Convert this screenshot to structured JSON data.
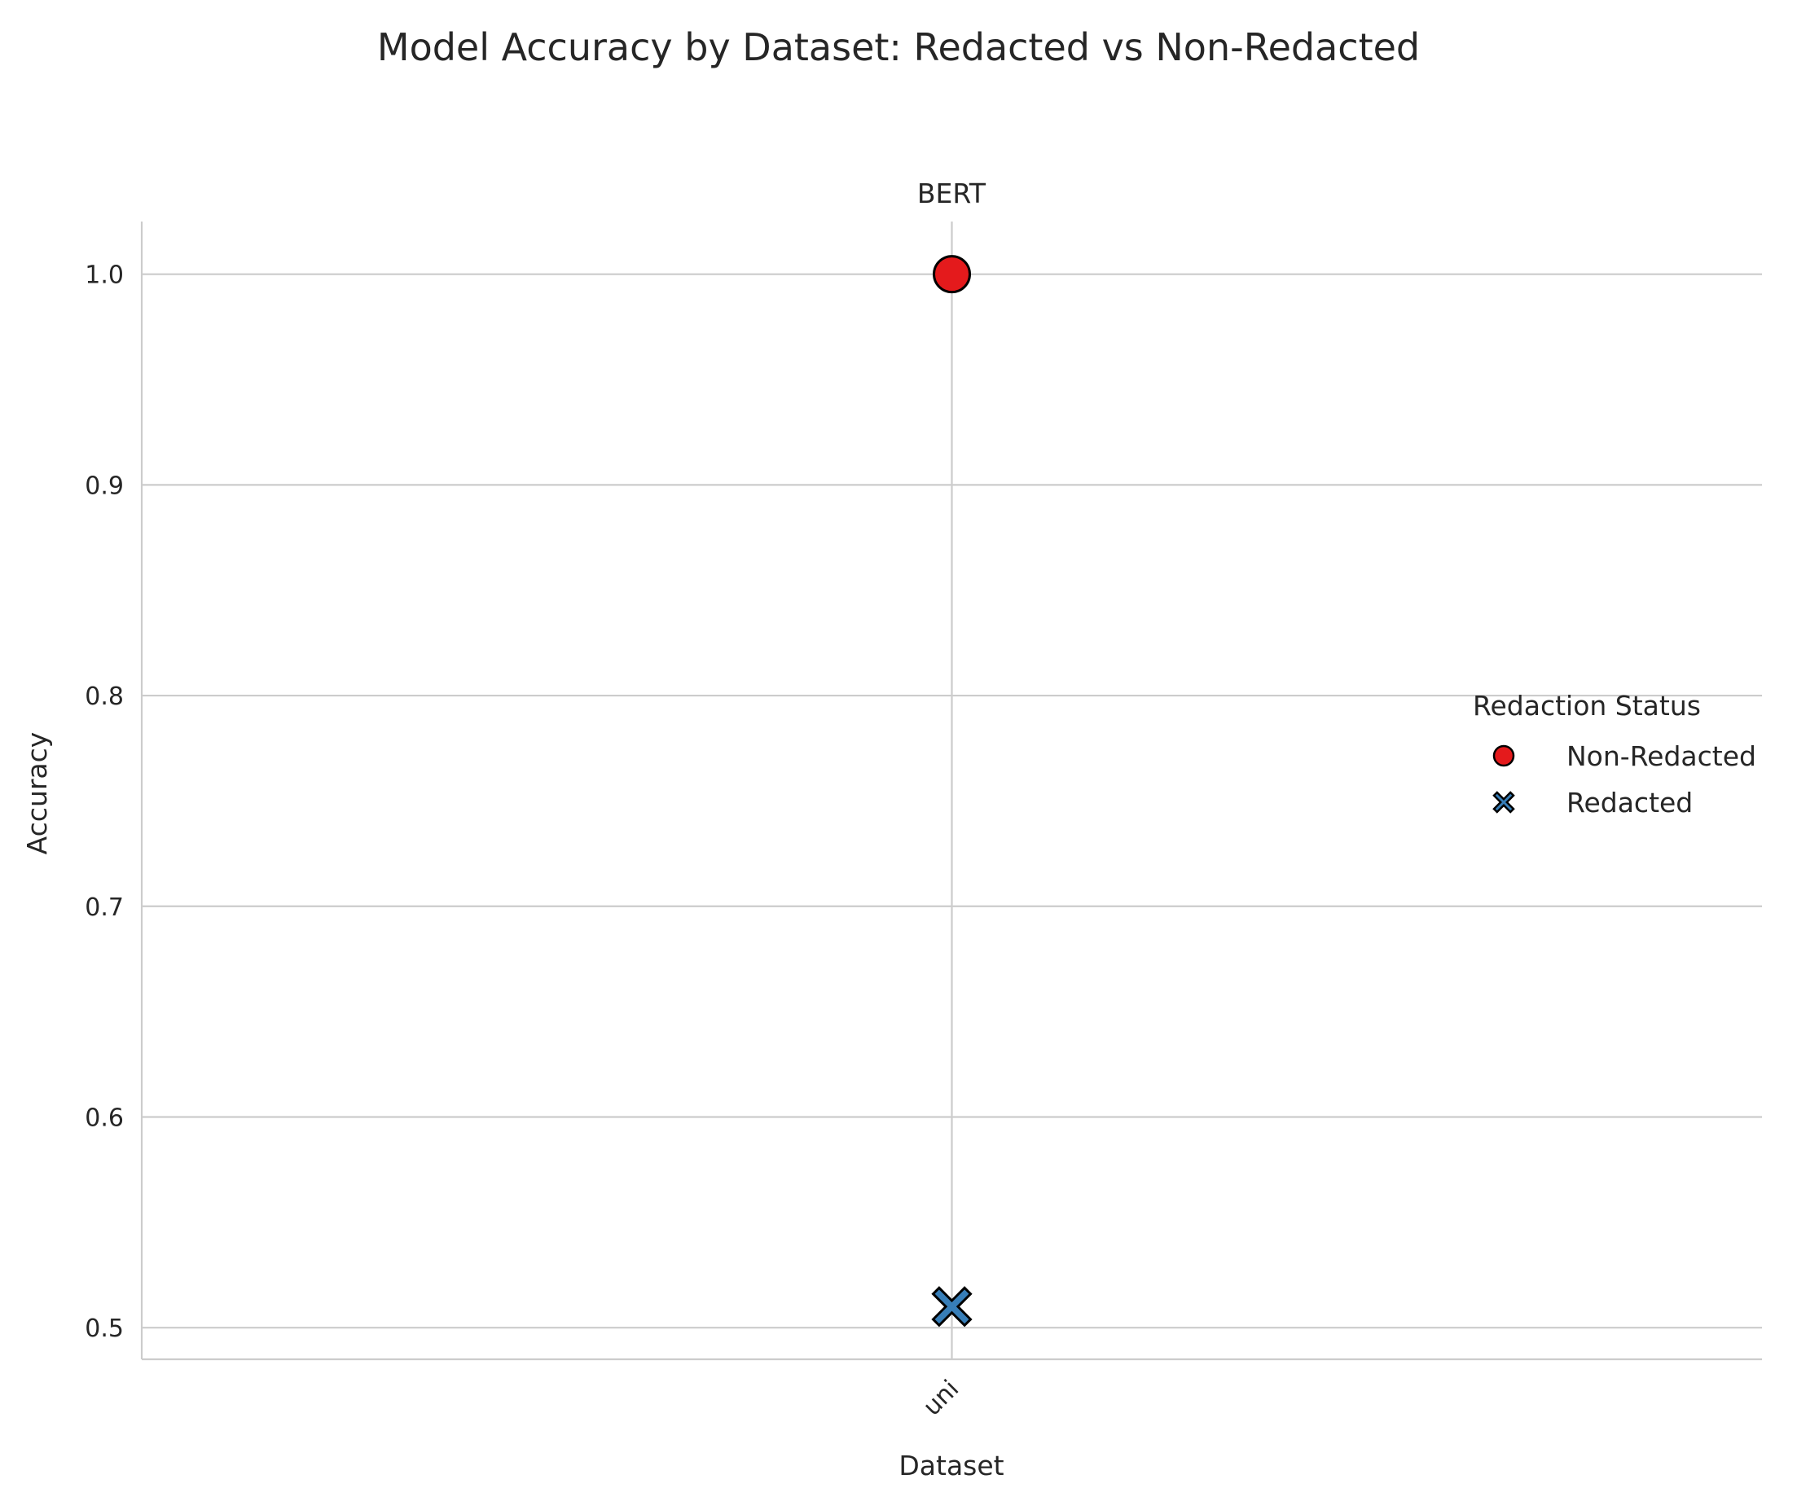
{
  "chart_data": {
    "type": "scatter",
    "title": "Model Accuracy by Dataset: Redacted vs Non-Redacted",
    "subtitle": "BERT",
    "xlabel": "Dataset",
    "ylabel": "Accuracy",
    "categories": [
      "uni"
    ],
    "ylim": [
      0.485,
      1.025
    ],
    "yticks": [
      0.5,
      0.6,
      0.7,
      0.8,
      0.9,
      1.0
    ],
    "ytick_labels": [
      "0.5",
      "0.6",
      "0.7",
      "0.8",
      "0.9",
      "1.0"
    ],
    "grid": true,
    "legend": {
      "title": "Redaction Status",
      "placement": "right"
    },
    "series": [
      {
        "name": "Non-Redacted",
        "marker": "circle",
        "color": "#e41a1c",
        "values": [
          1.0
        ]
      },
      {
        "name": "Redacted",
        "marker": "x",
        "color": "#377eb8",
        "values": [
          0.51
        ]
      }
    ]
  }
}
